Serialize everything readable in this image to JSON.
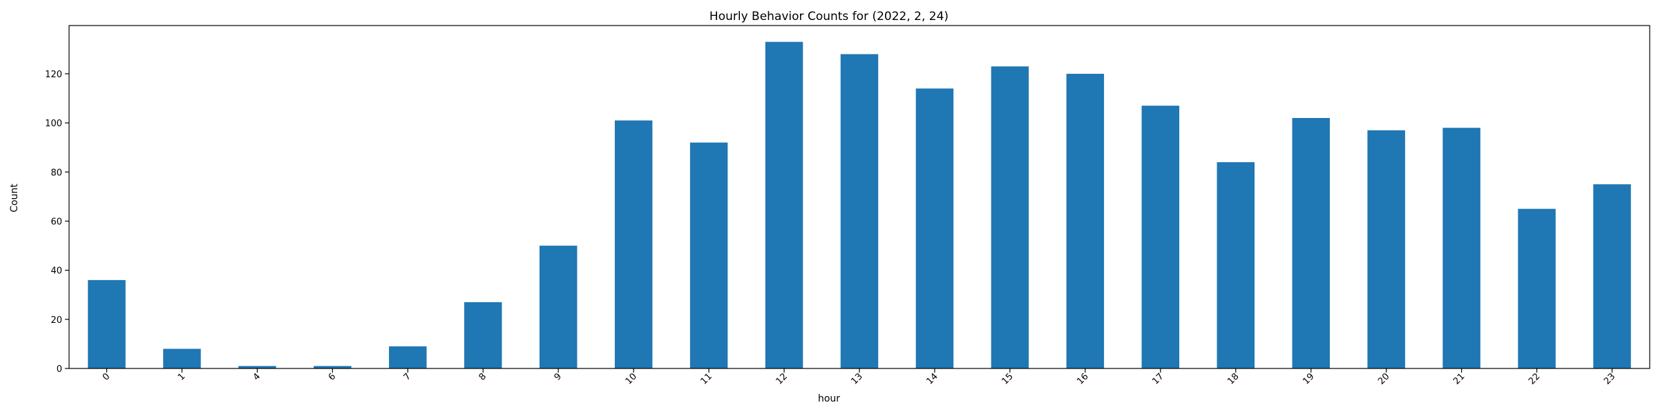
{
  "chart_data": {
    "type": "bar",
    "title": "Hourly Behavior Counts for (2022, 2, 24)",
    "xlabel": "hour",
    "ylabel": "Count",
    "categories": [
      "0",
      "1",
      "4",
      "6",
      "7",
      "8",
      "9",
      "10",
      "11",
      "12",
      "13",
      "14",
      "15",
      "16",
      "17",
      "18",
      "19",
      "20",
      "21",
      "22",
      "23"
    ],
    "values": [
      36,
      8,
      1,
      1,
      9,
      27,
      50,
      101,
      92,
      133,
      128,
      114,
      123,
      120,
      107,
      84,
      102,
      97,
      98,
      65,
      75
    ],
    "ylim": [
      0,
      139.65
    ],
    "yticks": [
      0,
      20,
      40,
      60,
      80,
      100,
      120
    ],
    "bar_color": "#1f77b4",
    "grid": false,
    "legend": false
  }
}
